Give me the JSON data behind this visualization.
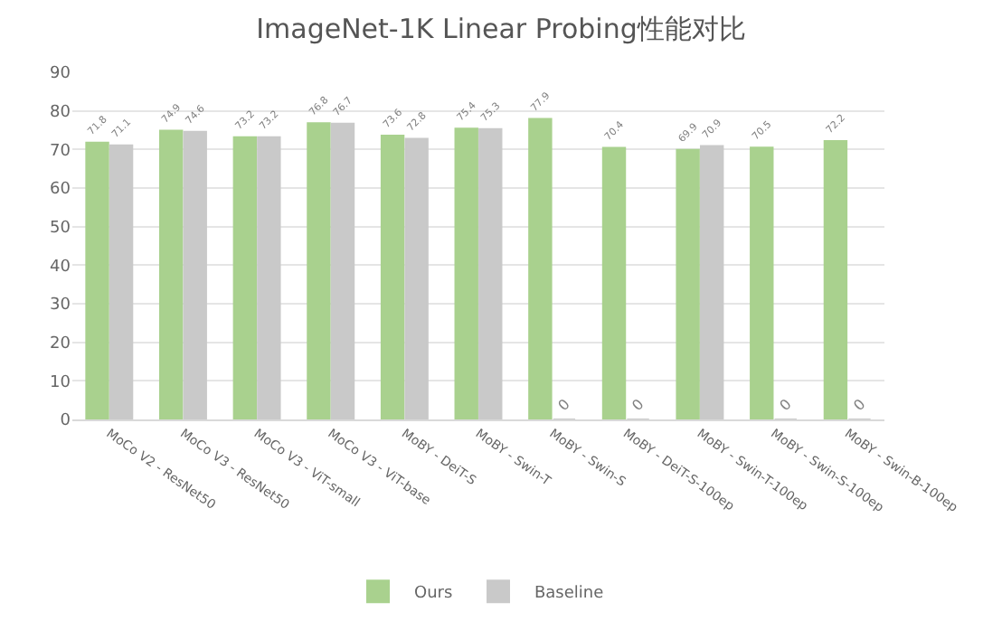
{
  "chart_data": {
    "type": "bar",
    "title": "ImageNet-1K Linear Probing性能对比",
    "categories": [
      "MoCo V2 - ResNet50",
      "MoCo V3 - ResNet50",
      "MoCo V3 - ViT-small",
      "MoCo V3 - ViT-base",
      "MoBY - DeiT-S",
      "MoBY - Swin-T",
      "MoBY - Swin-S",
      "MoBY - DeiT-S-100ep",
      "MoBY - Swin-T-100ep",
      "MoBY - Swin-S-100ep",
      "MoBY - Swin-B-100ep"
    ],
    "series": [
      {
        "name": "Ours",
        "color": "#a9d18e",
        "values": [
          71.8,
          74.9,
          73.2,
          76.8,
          73.6,
          75.4,
          77.9,
          70.4,
          69.9,
          70.5,
          72.2
        ]
      },
      {
        "name": "Baseline",
        "color": "#c9c9c9",
        "values": [
          71.1,
          74.6,
          73.2,
          76.7,
          72.8,
          75.3,
          0,
          0,
          70.9,
          0,
          0
        ]
      }
    ],
    "ylim": [
      0,
      90
    ],
    "yticks": [
      0,
      10,
      20,
      30,
      40,
      50,
      60,
      70,
      80,
      90
    ],
    "grid": "y",
    "legend": "bottom",
    "data_labels": true
  }
}
